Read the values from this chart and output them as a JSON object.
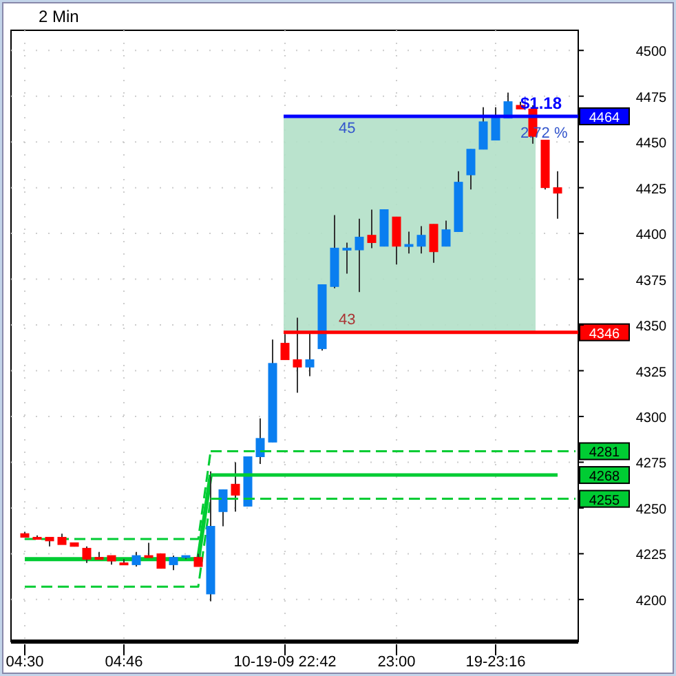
{
  "chart_data": {
    "type": "candlestick",
    "title": "2 Min",
    "categories": [
      "04:30",
      null,
      null,
      null,
      null,
      null,
      null,
      null,
      "04:46",
      null,
      null,
      null,
      null,
      null,
      null,
      null,
      null,
      null,
      null,
      null,
      null,
      "10-19-09 22:42",
      null,
      null,
      null,
      null,
      null,
      null,
      null,
      null,
      "23:00",
      null,
      null,
      null,
      null,
      null,
      null,
      null,
      "19-23:16",
      null,
      null,
      null,
      null,
      null
    ],
    "ohlc": [
      [
        4236,
        4237,
        4234,
        4234
      ],
      [
        4234,
        4235,
        4233,
        4234
      ],
      [
        4234,
        4234,
        4229,
        4232
      ],
      [
        4234,
        4236,
        4230,
        4230
      ],
      [
        4231,
        4231,
        4229,
        4229
      ],
      [
        4228,
        4229,
        4220,
        4222
      ],
      [
        4223,
        4226,
        4222,
        4223
      ],
      [
        4224,
        4224,
        4219,
        4221
      ],
      [
        4220,
        4222,
        4220,
        4220
      ],
      [
        4219,
        4226,
        4218,
        4224
      ],
      [
        4224,
        4231,
        4223,
        4224
      ],
      [
        4225,
        4225,
        4217,
        4217
      ],
      [
        4219,
        4224,
        4216,
        4223
      ],
      [
        4223,
        4224,
        4222,
        4224
      ],
      [
        4223,
        4225,
        4218,
        4218
      ],
      [
        4203,
        4270,
        4199,
        4240
      ],
      [
        4248,
        4260,
        4240,
        4260
      ],
      [
        4263,
        4275,
        4248,
        4257
      ],
      [
        4251,
        4278,
        4251,
        4278
      ],
      [
        4278,
        4299,
        4274,
        4288
      ],
      [
        4286,
        4342,
        4286,
        4329
      ],
      [
        4340,
        4345,
        4331,
        4331
      ],
      [
        4331,
        4354,
        4313,
        4327
      ],
      [
        4327,
        4346,
        4322,
        4331
      ],
      [
        4337,
        4372,
        4336,
        4372
      ],
      [
        4371,
        4410,
        4370,
        4392
      ],
      [
        4391,
        4395,
        4378,
        4392
      ],
      [
        4391,
        4408,
        4368,
        4398
      ],
      [
        4399,
        4413,
        4392,
        4395
      ],
      [
        4393,
        4413,
        4393,
        4413
      ],
      [
        4409,
        4409,
        4383,
        4393
      ],
      [
        4393,
        4401,
        4389,
        4394
      ],
      [
        4393,
        4404,
        4389,
        4399
      ],
      [
        4405,
        4405,
        4384,
        4390
      ],
      [
        4393,
        4407,
        4393,
        4402
      ],
      [
        4401,
        4434,
        4401,
        4428
      ],
      [
        4432,
        4446,
        4424,
        4446
      ],
      [
        4446,
        4469,
        4446,
        4461
      ],
      [
        4451,
        4469,
        4451,
        4463
      ],
      [
        4463,
        4477,
        4463,
        4472
      ],
      [
        4470,
        4472,
        4468,
        4468
      ],
      [
        4468,
        4470,
        4449,
        4453
      ],
      [
        4451,
        4451,
        4424,
        4425
      ],
      [
        4425,
        4434,
        4408,
        4422
      ]
    ],
    "colors": [
      "#ff0000",
      "#ff0000",
      "#ff0000",
      "#ff0000",
      "#ff0000",
      "#ff0000",
      "#ff0000",
      "#ff0000",
      "#ff0000",
      "#0a7ef0",
      "#ff0000",
      "#ff0000",
      "#0a7ef0",
      "#0a7ef0",
      "#ff0000",
      "#0a7ef0",
      "#0a7ef0",
      "#ff0000",
      "#0a7ef0",
      "#0a7ef0",
      "#0a7ef0",
      "#ff0000",
      "#ff0000",
      "#0a7ef0",
      "#0a7ef0",
      "#0a7ef0",
      "#0a7ef0",
      "#0a7ef0",
      "#ff0000",
      "#0a7ef0",
      "#ff0000",
      "#0a7ef0",
      "#0a7ef0",
      "#ff0000",
      "#0a7ef0",
      "#0a7ef0",
      "#0a7ef0",
      "#0a7ef0",
      "#0a7ef0",
      "#0a7ef0",
      "#ff0000",
      "#ff0000",
      "#ff0000",
      "#ff0000"
    ],
    "series": [
      {
        "type": "line",
        "color": "#00cc33",
        "line_style": "solid",
        "values": [
          4222,
          4222,
          4222,
          4222,
          4222,
          4222,
          4222,
          4222,
          4222,
          4222,
          4222,
          4222,
          4222,
          4222,
          4222,
          4268,
          null,
          null,
          null,
          null,
          null,
          null,
          null,
          null,
          null,
          null,
          null,
          null,
          null,
          null,
          null,
          null,
          null,
          null,
          null,
          null,
          null,
          null,
          null,
          null,
          null,
          null,
          null,
          null
        ]
      },
      {
        "type": "line",
        "color": "#00cc33",
        "line_style": "dashed",
        "values": [
          4233,
          4233,
          4233,
          4233,
          4233,
          4233,
          4233,
          4233,
          4233,
          4233,
          4233,
          4233,
          4233,
          4233,
          4233,
          4281,
          null,
          null,
          null,
          null,
          null,
          null,
          null,
          null,
          null,
          null,
          null,
          null,
          null,
          null,
          null,
          null,
          null,
          null,
          null,
          null,
          null,
          null,
          null,
          null,
          null,
          null,
          null,
          null
        ]
      },
      {
        "type": "line",
        "color": "#00cc33",
        "line_style": "dashed",
        "values": [
          4207,
          4207,
          4207,
          4207,
          4207,
          4207,
          4207,
          4207,
          4207,
          4207,
          4207,
          4207,
          4207,
          4207,
          4207,
          4255,
          null,
          null,
          null,
          null,
          null,
          null,
          null,
          null,
          null,
          null,
          null,
          null,
          null,
          null,
          null,
          null,
          null,
          null,
          null,
          null,
          null,
          null,
          null,
          null,
          null,
          null,
          null,
          null
        ]
      }
    ],
    "ylim": [
      4177,
      4511
    ],
    "yticks": [
      4200,
      4225,
      4250,
      4275,
      4300,
      4325,
      4350,
      4375,
      4400,
      4425,
      4450,
      4475,
      4500
    ],
    "grid": true,
    "bands": [
      {
        "axis": "y",
        "from": 4346,
        "to": 4464,
        "color": "#b3e0c8"
      }
    ],
    "ref_lines": [
      {
        "axis": "y",
        "value": 4464,
        "label": "4464",
        "color": "#0000ff"
      },
      {
        "axis": "y",
        "value": 4346,
        "label": "4346",
        "color": "#ff0000"
      },
      {
        "axis": "y",
        "value": 4281,
        "label": "4281",
        "color": "#00cc33",
        "line_style": "dashed"
      },
      {
        "axis": "y",
        "value": 4268,
        "label": "4268",
        "color": "#00cc33",
        "line_style": "solid"
      },
      {
        "axis": "y",
        "value": 4255,
        "label": "4255",
        "color": "#00cc33",
        "line_style": "dashed"
      }
    ],
    "annotations": [
      "45",
      "43",
      "$1.18",
      "2.72 %"
    ]
  }
}
